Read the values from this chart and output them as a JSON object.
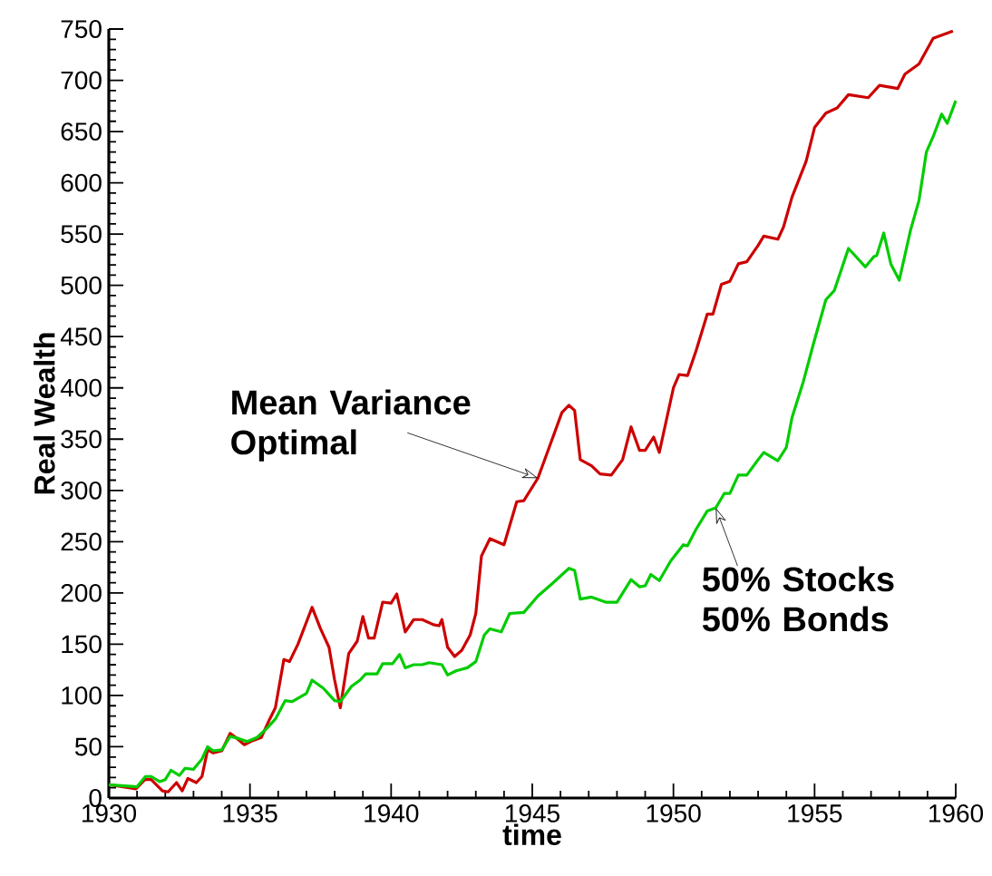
{
  "chart_data": {
    "type": "line",
    "xlabel": "time",
    "ylabel": "Real Wealth",
    "xlim": [
      1930,
      1960
    ],
    "ylim": [
      0,
      750
    ],
    "xticks": [
      1930,
      1935,
      1940,
      1945,
      1950,
      1955,
      1960
    ],
    "yticks": [
      0,
      50,
      100,
      150,
      200,
      250,
      300,
      350,
      400,
      450,
      500,
      550,
      600,
      650,
      700,
      750
    ],
    "series": [
      {
        "name": "Mean Variance Optimal",
        "color": "#cc0000",
        "x": [
          1930,
          1930.96,
          1931.28,
          1931.5,
          1931.9,
          1932.1,
          1932.4,
          1932.6,
          1932.8,
          1933.1,
          1933.3,
          1933.5,
          1933.7,
          1934.0,
          1934.3,
          1934.5,
          1934.8,
          1935.1,
          1935.4,
          1935.7,
          1935.9,
          1936.2,
          1936.4,
          1936.7,
          1937.2,
          1937.5,
          1937.8,
          1938.0,
          1938.2,
          1938.5,
          1938.8,
          1939.0,
          1939.2,
          1939.4,
          1939.7,
          1940.0,
          1940.2,
          1940.5,
          1940.8,
          1941.1,
          1941.5,
          1941.7,
          1941.8,
          1942.0,
          1942.25,
          1942.5,
          1942.8,
          1943.0,
          1943.2,
          1943.5,
          1944.0,
          1944.45,
          1944.7,
          1945.2,
          1945.6,
          1946.05,
          1946.3,
          1946.5,
          1946.7,
          1947.1,
          1947.4,
          1947.8,
          1948.2,
          1948.5,
          1948.8,
          1949.0,
          1949.3,
          1949.5,
          1950.0,
          1950.2,
          1950.5,
          1950.8,
          1951.2,
          1951.4,
          1951.7,
          1952.0,
          1952.3,
          1952.6,
          1953.0,
          1953.2,
          1953.7,
          1953.9,
          1954.2,
          1954.7,
          1955.0,
          1955.4,
          1955.8,
          1956.2,
          1956.9,
          1957.3,
          1957.95,
          1958.2,
          1958.7,
          1959.2,
          1959.9
        ],
        "values": [
          13,
          9,
          18,
          18,
          7,
          6,
          15,
          7,
          19,
          15,
          21,
          47,
          44,
          46,
          63,
          59,
          52,
          56,
          59,
          77,
          88,
          135,
          133,
          150,
          186,
          165,
          147,
          115,
          88,
          141,
          153,
          177,
          156,
          156,
          191,
          190,
          199,
          162,
          174,
          174,
          169,
          168,
          174,
          147,
          138,
          144,
          159,
          180,
          236,
          253,
          247,
          289,
          290,
          312,
          342,
          376,
          383,
          378,
          330,
          324,
          316,
          315,
          330,
          362,
          339,
          339,
          352,
          337,
          400,
          413,
          412,
          436,
          472,
          472,
          501,
          504,
          521,
          523,
          539,
          548,
          545,
          557,
          586,
          621,
          654,
          668,
          673,
          686,
          683,
          695,
          692,
          706,
          716,
          741,
          748
        ]
      },
      {
        "name": "50% Stocks 50% Bonds",
        "color": "#00cc00",
        "x": [
          1930,
          1931,
          1931.3,
          1931.5,
          1931.8,
          1932.0,
          1932.2,
          1932.5,
          1932.7,
          1933.0,
          1933.3,
          1933.5,
          1933.7,
          1934.0,
          1934.3,
          1934.6,
          1934.9,
          1935.25,
          1935.6,
          1935.9,
          1936.25,
          1936.5,
          1937.0,
          1937.2,
          1937.6,
          1938.0,
          1938.2,
          1938.6,
          1938.9,
          1939.1,
          1939.5,
          1939.7,
          1940.05,
          1940.3,
          1940.5,
          1940.8,
          1941.1,
          1941.35,
          1941.8,
          1942.0,
          1942.3,
          1942.7,
          1943.0,
          1943.3,
          1943.5,
          1943.9,
          1944.2,
          1944.7,
          1945.2,
          1945.7,
          1946.3,
          1946.5,
          1946.7,
          1947.1,
          1947.6,
          1948.0,
          1948.5,
          1948.8,
          1949.0,
          1949.2,
          1949.5,
          1949.9,
          1950.35,
          1950.5,
          1950.8,
          1951.2,
          1951.5,
          1951.8,
          1952.0,
          1952.3,
          1952.6,
          1953.0,
          1953.2,
          1953.7,
          1954.0,
          1954.2,
          1954.6,
          1954.95,
          1955.4,
          1955.7,
          1956.2,
          1956.4,
          1956.8,
          1957.1,
          1957.2,
          1957.45,
          1957.7,
          1958.0,
          1958.4,
          1958.7,
          1958.96,
          1959.2,
          1959.5,
          1959.7,
          1960.0
        ],
        "values": [
          13,
          11,
          21,
          21,
          16,
          18,
          27,
          22,
          29,
          28,
          38,
          50,
          46,
          47,
          60,
          58,
          55,
          59,
          68,
          77,
          95,
          94,
          102,
          115,
          107,
          95,
          94,
          109,
          115,
          121,
          121,
          131,
          131,
          140,
          127,
          130,
          130,
          132,
          130,
          120,
          124,
          127,
          133,
          159,
          165,
          162,
          180,
          181,
          197,
          209,
          224,
          222,
          194,
          196,
          191,
          191,
          213,
          206,
          207,
          218,
          212,
          231,
          247,
          246,
          262,
          280,
          283,
          297,
          297,
          315,
          315,
          330,
          337,
          329,
          342,
          371,
          406,
          442,
          486,
          495,
          536,
          530,
          518,
          528,
          529,
          551,
          521,
          505,
          554,
          583,
          630,
          645,
          667,
          658,
          680
        ]
      }
    ]
  }
}
